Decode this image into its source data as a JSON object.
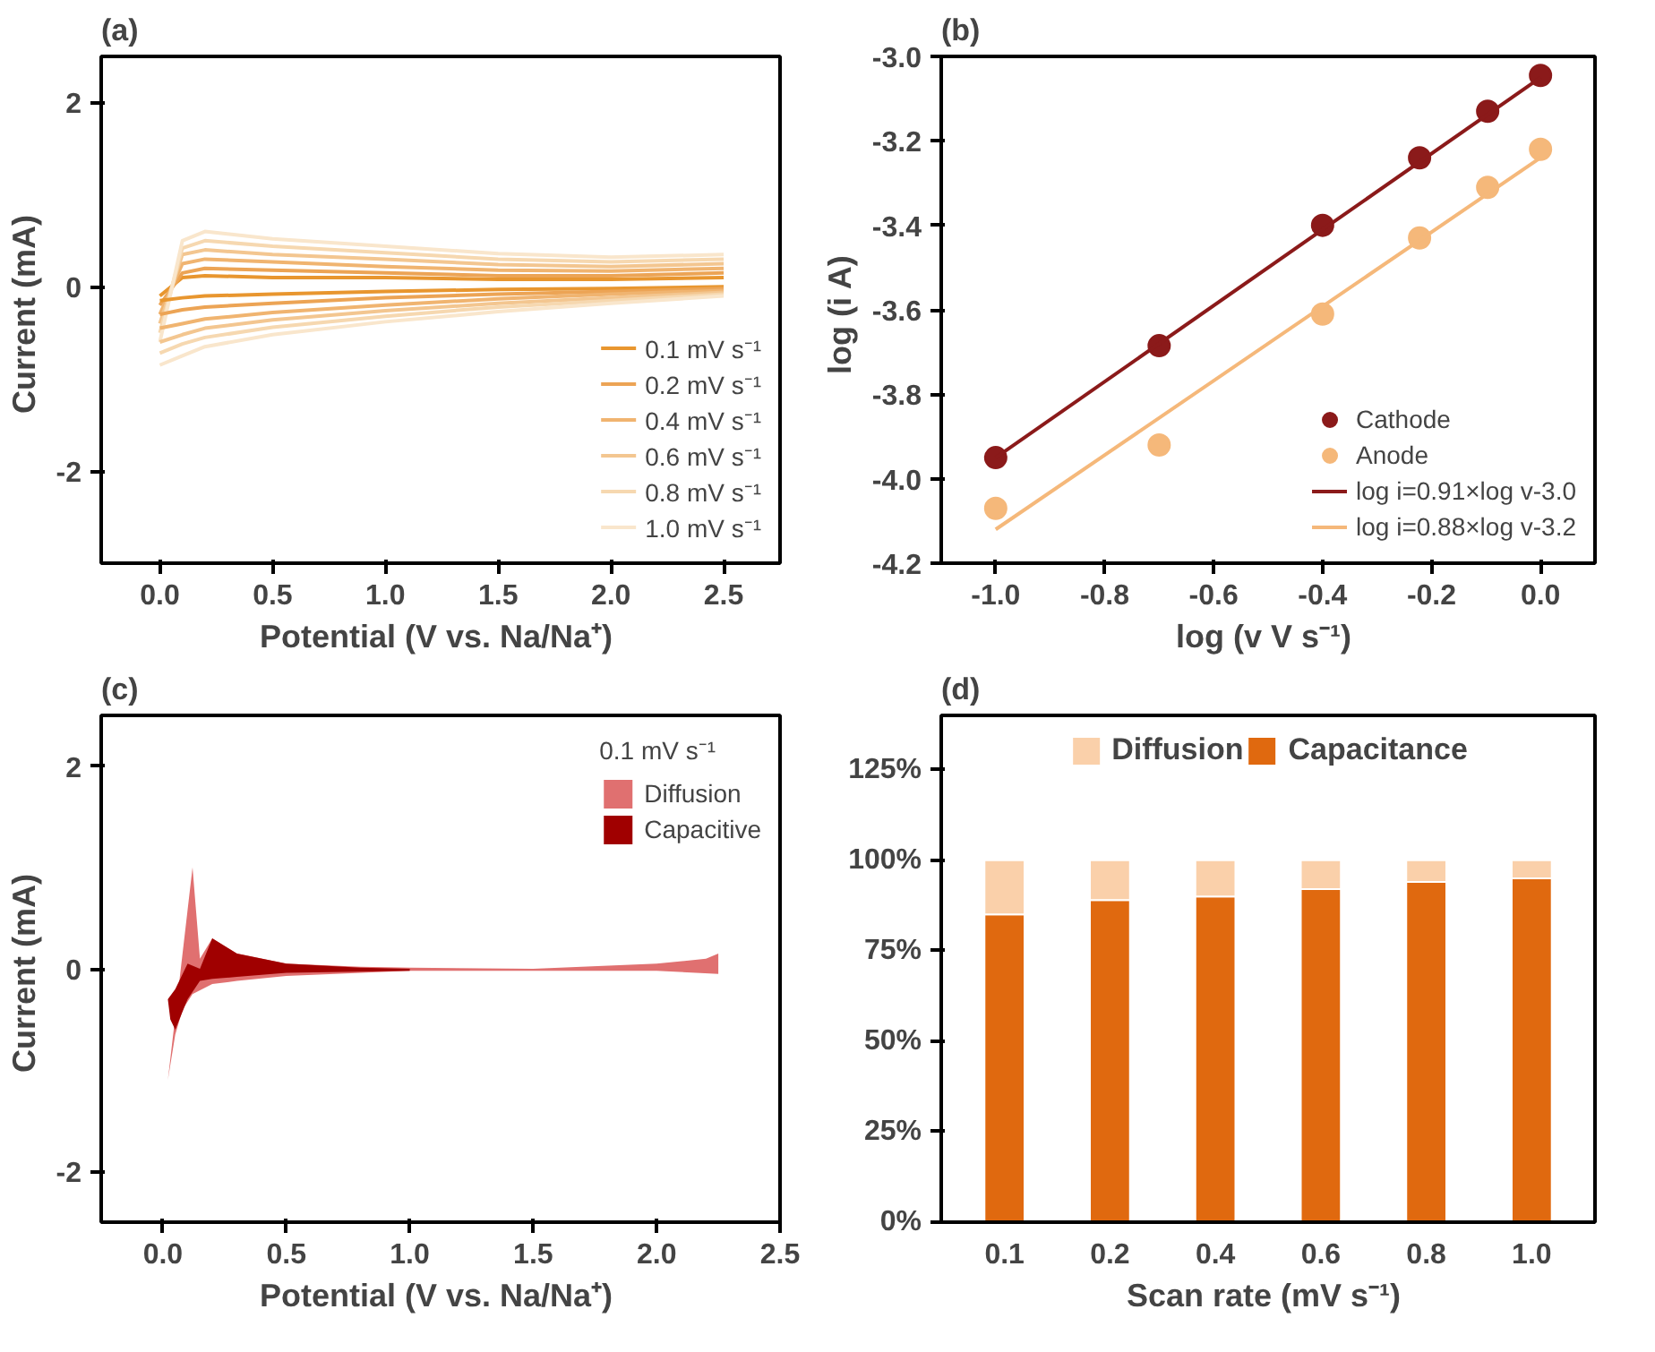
{
  "chart_data": [
    {
      "type": "line",
      "title": "(a)",
      "xlabel": "Potential  (V vs. Na/Na⁺)",
      "ylabel": "Current  (mA)",
      "xlim": [
        -0.26,
        2.75
      ],
      "ylim": [
        -3,
        2.5
      ],
      "xticks": [
        {
          "value": 0,
          "label": "0.0"
        },
        0.5,
        {
          "value": 1,
          "label": "1.0"
        },
        1.5,
        {
          "value": 2,
          "label": "2.0"
        },
        2.5
      ],
      "yticks": [
        -2,
        0,
        2
      ],
      "legend": "bottom right",
      "x": [
        0.0,
        0.1,
        0.2,
        0.5,
        1.0,
        1.5,
        2.0,
        2.5
      ],
      "series": [
        {
          "name": "0.1 mV s⁻¹",
          "color": "#e8962f",
          "values": [
            -0.1,
            0.1,
            0.12,
            0.1,
            0.1,
            0.08,
            0.08,
            0.1
          ]
        },
        {
          "name": "0.2 mV s⁻¹",
          "color": "#eca455",
          "values": [
            -0.2,
            0.15,
            0.2,
            0.18,
            0.15,
            0.12,
            0.12,
            0.15
          ]
        },
        {
          "name": "0.4 mV s⁻¹",
          "color": "#f0b470",
          "values": [
            -0.3,
            0.25,
            0.3,
            0.27,
            0.22,
            0.18,
            0.17,
            0.2
          ]
        },
        {
          "name": "0.6 mV s⁻¹",
          "color": "#f3c690",
          "values": [
            -0.4,
            0.35,
            0.4,
            0.35,
            0.3,
            0.24,
            0.22,
            0.25
          ]
        },
        {
          "name": "0.8 mV s⁻¹",
          "color": "#f6d8b0",
          "values": [
            -0.5,
            0.42,
            0.5,
            0.44,
            0.37,
            0.3,
            0.27,
            0.3
          ]
        },
        {
          "name": "1.0 mV s⁻¹",
          "color": "#f9e6cc",
          "values": [
            -0.6,
            0.5,
            0.6,
            0.52,
            0.44,
            0.36,
            0.32,
            0.35
          ]
        },
        {
          "color": "#e8962f",
          "values": [
            -0.15,
            -0.12,
            -0.1,
            -0.08,
            -0.05,
            -0.03,
            -0.02,
            0.0
          ]
        },
        {
          "color": "#eca455",
          "values": [
            -0.3,
            -0.25,
            -0.22,
            -0.18,
            -0.12,
            -0.08,
            -0.05,
            -0.02
          ]
        },
        {
          "color": "#f0b470",
          "values": [
            -0.45,
            -0.4,
            -0.35,
            -0.28,
            -0.2,
            -0.13,
            -0.08,
            -0.04
          ]
        },
        {
          "color": "#f3c690",
          "values": [
            -0.6,
            -0.52,
            -0.45,
            -0.36,
            -0.26,
            -0.18,
            -0.12,
            -0.06
          ]
        },
        {
          "color": "#f6d8b0",
          "values": [
            -0.72,
            -0.62,
            -0.55,
            -0.44,
            -0.32,
            -0.22,
            -0.15,
            -0.08
          ]
        },
        {
          "color": "#f9e6cc",
          "values": [
            -0.85,
            -0.75,
            -0.65,
            -0.52,
            -0.38,
            -0.27,
            -0.18,
            -0.1
          ]
        }
      ]
    },
    {
      "type": "scatter",
      "title": "(b)",
      "xlabel": "log  (v V s⁻¹)",
      "ylabel": "log  (i A)",
      "xlim": [
        -1.1,
        0.1
      ],
      "ylim": [
        -4.2,
        -3.0
      ],
      "xticks": [
        {
          "value": -1,
          "label": "-1.0"
        },
        -0.8,
        -0.6,
        -0.4,
        -0.2,
        {
          "value": 0,
          "label": "0.0"
        }
      ],
      "yticks": [
        -4.2,
        {
          "value": -4,
          "label": "-4.0"
        },
        -3.8,
        -3.6,
        -3.4,
        -3.2,
        {
          "value": -3,
          "label": "-3.0"
        }
      ],
      "legend": "bottom right",
      "marker": "circle",
      "x": [
        -1.0,
        -0.7,
        -0.4,
        -0.222,
        -0.097,
        0.0
      ],
      "series": [
        {
          "name": "Cathode",
          "color": "#8b1a1a",
          "values": [
            -3.95,
            -3.685,
            -3.4,
            -3.24,
            -3.13,
            -3.045
          ]
        },
        {
          "name": "Anode",
          "color": "#f5b87a",
          "values": [
            -4.07,
            -3.92,
            -3.61,
            -3.43,
            -3.31,
            -3.22
          ]
        },
        {
          "name": "log i=0.91×log v-3.0",
          "type": "line",
          "marker": "none",
          "color": "#8b1a1a",
          "x": [
            -1.0,
            0.0
          ],
          "values": [
            -3.95,
            -3.05
          ]
        },
        {
          "name": "log i=0.88×log v-3.2",
          "type": "line",
          "marker": "none",
          "color": "#f5b87a",
          "x": [
            -1.0,
            0.0
          ],
          "values": [
            -4.12,
            -3.24
          ]
        }
      ]
    },
    {
      "type": "area",
      "title": "(c)",
      "xlabel": "Potential  (V vs. Na/Na⁺)",
      "ylabel": "Current  (mA)",
      "xlim": [
        -0.25,
        2.5
      ],
      "ylim": [
        -2.5,
        2.5
      ],
      "xticks": [
        {
          "value": 0,
          "label": "0.0"
        },
        0.5,
        {
          "value": 1,
          "label": "1.0"
        },
        1.5,
        {
          "value": 2,
          "label": "2.0"
        },
        2.5
      ],
      "yticks": [
        -2,
        0,
        2
      ],
      "legend": "top right",
      "legend_title": "0.1 mV s⁻¹",
      "series": [
        {
          "name": "Diffusion",
          "color": "#e07070",
          "x": [
            0.02,
            0.12,
            0.15,
            0.2,
            0.3,
            0.5,
            0.8,
            1.0,
            1.5,
            2.0,
            2.2,
            2.25,
            2.25,
            2.0,
            1.5,
            1.0,
            0.5,
            0.3,
            0.2,
            0.12,
            0.08,
            0.05,
            0.02
          ],
          "values": [
            -1.1,
            1.0,
            0.1,
            0.3,
            0.15,
            0.05,
            0.02,
            0.01,
            0.0,
            0.05,
            0.1,
            0.15,
            -0.05,
            -0.02,
            -0.02,
            -0.02,
            -0.07,
            -0.12,
            -0.15,
            -0.25,
            -0.4,
            -0.65,
            -1.1
          ]
        },
        {
          "name": "Capacitive",
          "color": "#a00000",
          "x": [
            0.02,
            0.05,
            0.1,
            0.15,
            0.2,
            0.3,
            0.5,
            0.8,
            1.0,
            1.0,
            0.5,
            0.3,
            0.2,
            0.15,
            0.1,
            0.05,
            0.03
          ],
          "values": [
            -0.3,
            -0.2,
            0.05,
            0.0,
            0.3,
            0.15,
            0.05,
            0.01,
            0.0,
            -0.02,
            -0.04,
            -0.08,
            -0.1,
            -0.12,
            -0.3,
            -0.6,
            -0.5
          ]
        }
      ]
    },
    {
      "type": "bar",
      "title": "(d)",
      "xlabel": "Scan rate  (mV s⁻¹)",
      "ylim": [
        0,
        140
      ],
      "yticks": [
        {
          "value": 0,
          "label": "0%"
        },
        {
          "value": 25,
          "label": "25%"
        },
        {
          "value": 50,
          "label": "50%"
        },
        {
          "value": 75,
          "label": "75%"
        },
        {
          "value": 100,
          "label": "100%"
        },
        {
          "value": 125,
          "label": "125%"
        }
      ],
      "stacked": true,
      "legend": "top",
      "categories": [
        "0.1",
        "0.2",
        "0.4",
        "0.6",
        "0.8",
        "1.0"
      ],
      "series": [
        {
          "name": "Capacitance",
          "color": "#e0690f",
          "values": [
            85,
            89,
            90,
            92,
            94,
            95
          ]
        },
        {
          "name": "Diffusion",
          "color": "#fad0aa",
          "values": [
            15,
            11,
            10,
            8,
            6,
            5
          ]
        }
      ]
    }
  ]
}
